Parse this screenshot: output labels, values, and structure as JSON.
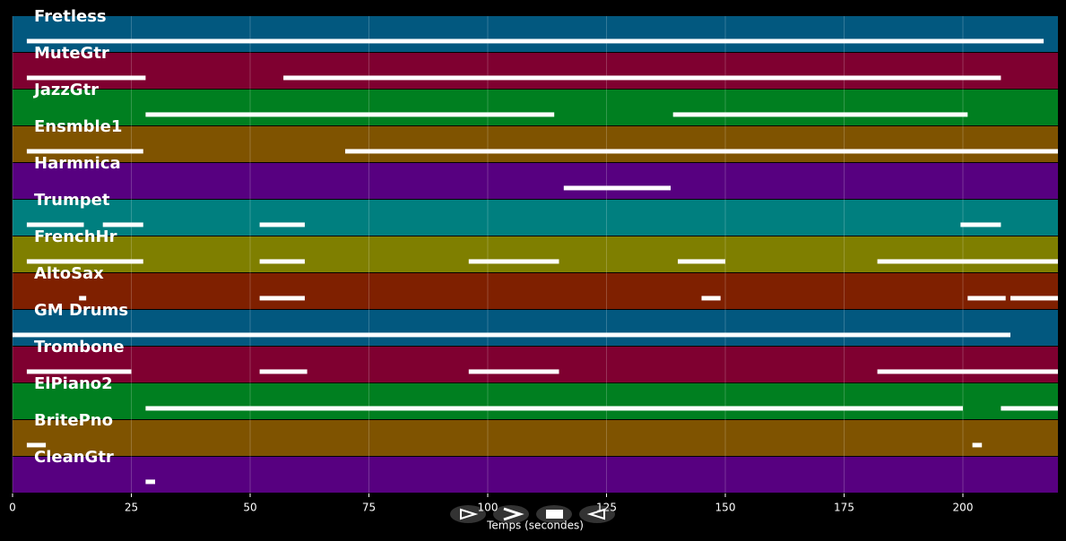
{
  "chart_data": {
    "type": "pianoroll",
    "xlabel": "Temps (secondes)",
    "xlim": [
      0,
      220
    ],
    "xticks": [
      0,
      25,
      50,
      75,
      100,
      125,
      150,
      175,
      200
    ],
    "grid": true,
    "tracks": [
      {
        "name": "Fretless",
        "color": "#02587f",
        "segments": [
          [
            3,
            217
          ]
        ]
      },
      {
        "name": "MuteGtr",
        "color": "#7f0030",
        "segments": [
          [
            3,
            28
          ],
          [
            57,
            208
          ]
        ]
      },
      {
        "name": "JazzGtr",
        "color": "#007f20",
        "segments": [
          [
            28,
            114
          ],
          [
            139,
            201
          ]
        ]
      },
      {
        "name": "Ensmble1",
        "color": "#7f5300",
        "segments": [
          [
            3,
            27.5
          ],
          [
            70,
            220
          ]
        ]
      },
      {
        "name": "Harmnica",
        "color": "#570080",
        "segments": [
          [
            116,
            138.5
          ]
        ]
      },
      {
        "name": "Trumpet",
        "color": "#007f7f",
        "segments": [
          [
            3,
            15
          ],
          [
            19,
            27.5
          ],
          [
            52,
            61.5
          ],
          [
            199.5,
            208
          ]
        ]
      },
      {
        "name": "FrenchHr",
        "color": "#7f7f00",
        "segments": [
          [
            3,
            27.5
          ],
          [
            52,
            61.5
          ],
          [
            96,
            115
          ],
          [
            140,
            150
          ],
          [
            182,
            220
          ]
        ]
      },
      {
        "name": "AltoSax",
        "color": "#7f2000",
        "segments": [
          [
            14,
            15.5
          ],
          [
            52,
            61.5
          ],
          [
            145,
            149
          ],
          [
            201,
            209
          ],
          [
            210,
            220
          ]
        ]
      },
      {
        "name": "GM Drums",
        "color": "#02587f",
        "segments": [
          [
            0,
            210
          ]
        ]
      },
      {
        "name": "Trombone",
        "color": "#7f0030",
        "segments": [
          [
            3,
            25
          ],
          [
            52,
            62
          ],
          [
            96,
            115
          ],
          [
            182,
            220
          ]
        ]
      },
      {
        "name": "ElPiano2",
        "color": "#007f20",
        "segments": [
          [
            28,
            200
          ],
          [
            208,
            220
          ]
        ]
      },
      {
        "name": "BritePno",
        "color": "#7f5300",
        "segments": [
          [
            3,
            7
          ],
          [
            202,
            204
          ]
        ]
      },
      {
        "name": "CleanGtr",
        "color": "#570080",
        "segments": [
          [
            28,
            30
          ]
        ]
      }
    ]
  }
}
